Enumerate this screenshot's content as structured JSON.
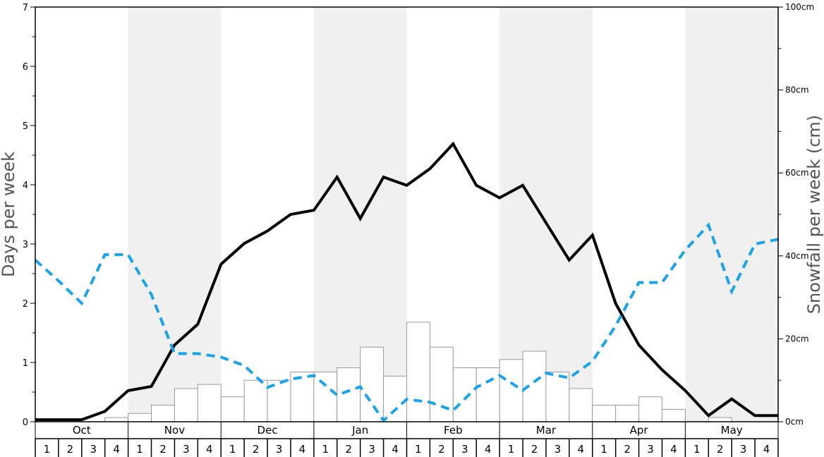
{
  "chart_data": {
    "type": "bar",
    "ylabel": "Days per week",
    "y2label": "Snowfall per week (cm)",
    "ylim": [
      0,
      7
    ],
    "y_ticks": [
      "0",
      "1",
      "2",
      "3",
      "4",
      "5",
      "6",
      "7"
    ],
    "y2lim": [
      0,
      100
    ],
    "y2_ticks": [
      "0cm",
      "20cm",
      "40cm",
      "60cm",
      "80cm",
      "100cm"
    ],
    "months": [
      "Oct",
      "Nov",
      "Dec",
      "Jan",
      "Feb",
      "Mar",
      "Apr",
      "May"
    ],
    "week_labels": [
      "1",
      "2",
      "3",
      "4"
    ],
    "shaded_months": [
      "Nov",
      "Jan",
      "Mar",
      "May"
    ],
    "colors": {
      "bars_fill": "#ffffff",
      "bars_stroke": "#999999",
      "snowfall_line": "#000000",
      "days_line": "#1aa3e8",
      "shade": "#f0f0f0"
    },
    "series": [
      {
        "axis": "left",
        "style": "bar",
        "values": [
          0,
          0,
          0,
          0.07,
          0.14,
          0.28,
          0.56,
          0.63,
          0.42,
          0.7,
          0.7,
          0.84,
          0.84,
          0.91,
          1.26,
          0.77,
          1.68,
          1.26,
          0.91,
          0.91,
          1.05,
          1.19,
          0.84,
          0.56,
          0.28,
          0.28,
          0.42,
          0.21,
          0,
          0.07,
          0,
          0
        ]
      },
      {
        "axis": "right",
        "style": "solid-line",
        "values": [
          0.5,
          0.5,
          0.5,
          2.5,
          7.5,
          8.5,
          18.5,
          23.5,
          38,
          43,
          46,
          50,
          51,
          59,
          49,
          59,
          57,
          61,
          67,
          57,
          54,
          57,
          48,
          39,
          45,
          28.5,
          18.5,
          12.5,
          7.5,
          1.5,
          5.5,
          1.5,
          1.5
        ]
      },
      {
        "axis": "left",
        "style": "dashed-line",
        "values": [
          2.73,
          2.38,
          2.0,
          2.82,
          2.82,
          2.15,
          1.15,
          1.15,
          1.09,
          0.95,
          0.58,
          0.72,
          0.78,
          0.45,
          0.59,
          0.02,
          0.38,
          0.33,
          0.19,
          0.58,
          0.78,
          0.53,
          0.82,
          0.74,
          1.02,
          1.62,
          2.35,
          2.35,
          2.9,
          3.32,
          2.2,
          3.0,
          3.08
        ]
      }
    ]
  }
}
